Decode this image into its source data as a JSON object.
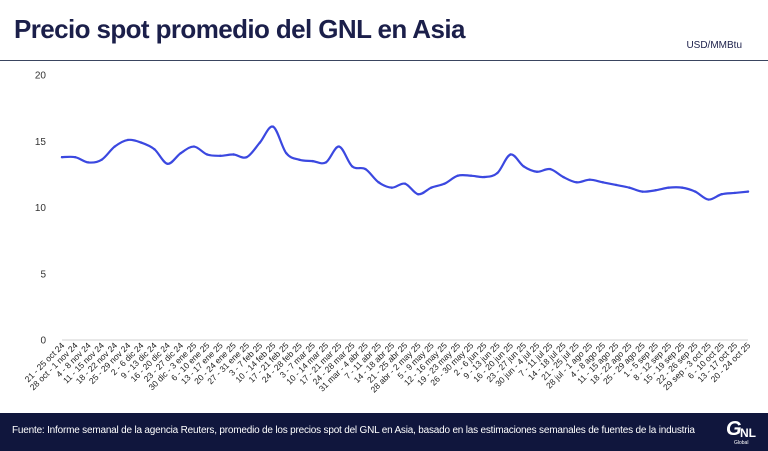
{
  "header": {
    "title": "Precio spot promedio del GNL en Asia",
    "unit": "USD/MMBtu"
  },
  "footer": {
    "source": "Fuente: Informe semanal de la agencia Reuters, promedio de los precios spot del GNL en Asia, basado en las estimaciones semanales de fuentes de la industria",
    "logo_text": "GNL",
    "logo_sub": "Global"
  },
  "colors": {
    "line": "#3b48e0",
    "title": "#1b1f4a",
    "footer_bg": "#10163d"
  },
  "chart_data": {
    "type": "line",
    "title": "Precio spot promedio del GNL en Asia",
    "ylabel": "USD/MMBtu",
    "ylim": [
      0,
      20
    ],
    "yticks": [
      0,
      5,
      10,
      15,
      20
    ],
    "grid": false,
    "categories": [
      "21 - 25 oct 24",
      "28 oct - 1 nov 24",
      "4 - 8 nov 24",
      "11 - 15 nov 24",
      "18 - 22 nov 24",
      "25 - 29 nov 24",
      "2 - 6 dic 24",
      "9 - 13 dic 24",
      "16 - 20 dic 24",
      "23 - 27 dic 24",
      "30 dic - 3 ene 25",
      "6 - 10 ene 25",
      "13 - 17 ene 25",
      "20 - 24 ene 25",
      "27 - 31 ene 25",
      "3 - 7 feb 25",
      "10 - 14 feb 25",
      "17 - 21 feb 25",
      "24 - 28 feb 25",
      "3 - 7 mar 25",
      "10 - 14 mar 25",
      "17 - 21 mar 25",
      "24 - 28 mar 25",
      "31 mar - 4 abr 25",
      "7 - 11 abr 25",
      "14 - 18 abr 25",
      "21 - 25 abr 25",
      "28 abr - 2 may 25",
      "5 - 9 may 25",
      "12 - 16 may 25",
      "19 - 23 may 25",
      "26 - 30 may 25",
      "2 - 6 jun 25",
      "9 - 13 jun 25",
      "16 - 20 jun 25",
      "23 - 27 jun 25",
      "30 jun - 4 jul 25",
      "7 - 11 jul 25",
      "14 - 18 jul 25",
      "21 - 25 jul 25",
      "28 jul - 1 ago 25",
      "4 - 8 ago 25",
      "11 - 15 ago 25",
      "18 - 22 ago 25",
      "25 - 29 ago 25",
      "1 - 5 sep 25",
      "8 - 12 sep 25",
      "15 - 19 sep 25",
      "22 - 26 sep 25",
      "29 sep - 3 oct 25",
      "6 - 10 oct 25",
      "13 - 17 oct 25",
      "20 - 24 oct 25"
    ],
    "series": [
      {
        "values": [
          13.8,
          13.8,
          13.4,
          13.6,
          14.6,
          15.1,
          14.9,
          14.4,
          13.3,
          14.1,
          14.6,
          14.0,
          13.9,
          14.0,
          13.8,
          14.9,
          16.1,
          14.1,
          13.6,
          13.5,
          13.4,
          14.6,
          13.1,
          12.9,
          11.9,
          11.5,
          11.8,
          11.0,
          11.5,
          11.8,
          12.4,
          12.4,
          12.3,
          12.6,
          14.0,
          13.1,
          12.7,
          12.9,
          12.3,
          11.9,
          12.1,
          11.9,
          11.7,
          11.5,
          11.2,
          11.3,
          11.5,
          11.5,
          11.2,
          10.6,
          11.0,
          11.1,
          11.2
        ]
      }
    ]
  }
}
